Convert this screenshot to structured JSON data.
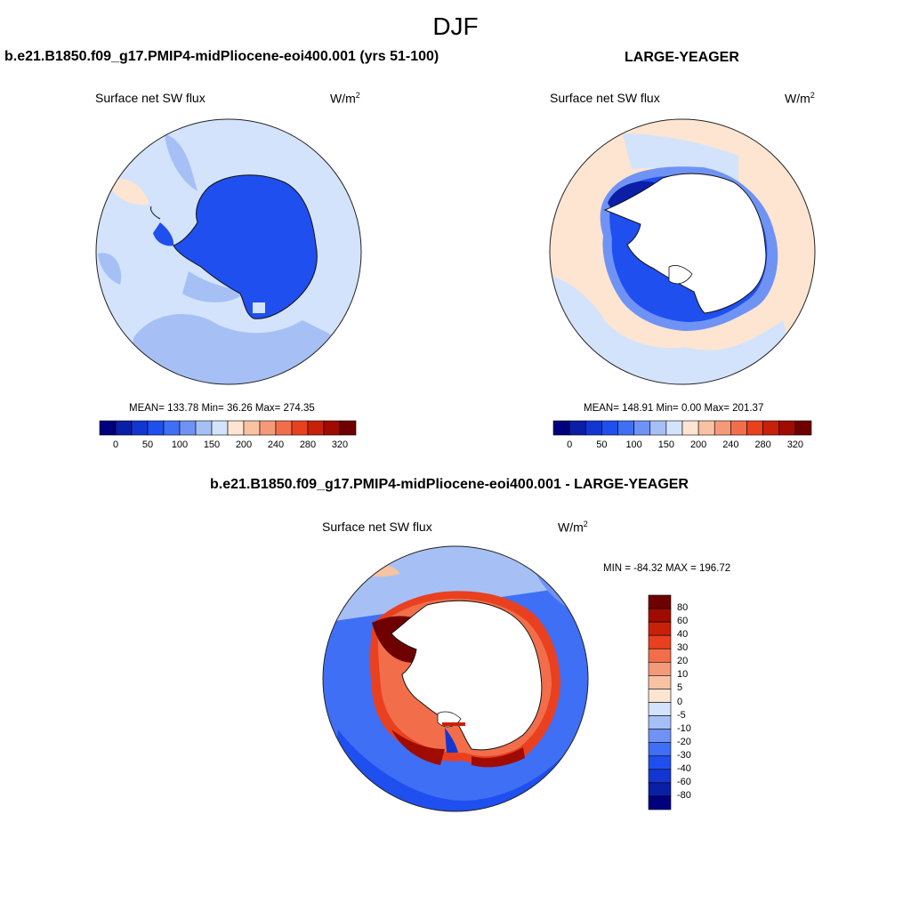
{
  "figure": {
    "title": "DJF"
  },
  "panels": [
    {
      "title": "b.e21.B1850.f09_g17.PMIP4-midPliocene-eoi400.001 (yrs 51-100)",
      "left_label": "Surface net SW flux",
      "units_base": "W/m",
      "units_exp": "2",
      "stats": "MEAN= 133.78  Min=  36.26  Max= 274.35"
    },
    {
      "title": "LARGE-YEAGER",
      "left_label": "Surface net SW flux",
      "units_base": "W/m",
      "units_exp": "2",
      "stats": "MEAN= 148.91  Min=   0.00  Max= 201.37"
    },
    {
      "title": "b.e21.B1850.f09_g17.PMIP4-midPliocene-eoi400.001 - LARGE-YEAGER",
      "left_label": "Surface net SW flux",
      "units_base": "W/m",
      "units_exp": "2",
      "stats": "MIN = -84.32 MAX = 196.72"
    }
  ],
  "colorbars": {
    "absolute": {
      "orientation": "horizontal",
      "colors": [
        "#00007e",
        "#0b1ea6",
        "#1336d0",
        "#1f4fef",
        "#3f6ff5",
        "#6f93f5",
        "#a6c0f6",
        "#d3e3fb",
        "#fde5d2",
        "#f8c3a3",
        "#f59a78",
        "#f26e4b",
        "#e9401f",
        "#c9200a",
        "#a00b00",
        "#6f0000"
      ],
      "tick_labels": [
        "0",
        "50",
        "100",
        "150",
        "200",
        "240",
        "280",
        "320"
      ]
    },
    "difference": {
      "orientation": "vertical",
      "colors": [
        "#6f0000",
        "#a00b00",
        "#c9200a",
        "#e9401f",
        "#f26e4b",
        "#f59a78",
        "#f8c3a3",
        "#fde5d2",
        "#d3e3fb",
        "#a6c0f6",
        "#6f93f5",
        "#3f6ff5",
        "#1f4fef",
        "#1336d0",
        "#0b1ea6",
        "#00007e"
      ],
      "tick_labels": [
        "80",
        "60",
        "40",
        "30",
        "20",
        "10",
        "5",
        "0",
        "-5",
        "-10",
        "-20",
        "-30",
        "-40",
        "-60",
        "-80"
      ]
    }
  }
}
